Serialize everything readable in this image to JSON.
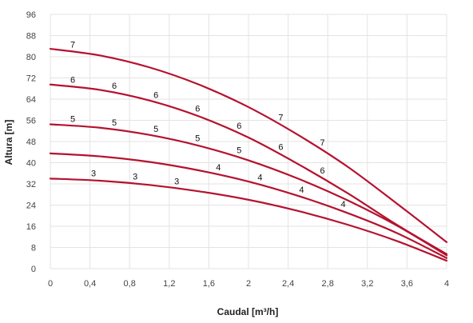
{
  "chart_data": {
    "type": "line",
    "xlabel": "Caudal [m³/h]",
    "ylabel": "Altura [m]",
    "xlim": [
      0,
      4
    ],
    "ylim": [
      0,
      96
    ],
    "x_ticks": [
      {
        "value": 0,
        "label": "0"
      },
      {
        "value": 0.4,
        "label": "0,4"
      },
      {
        "value": 0.8,
        "label": "0,8"
      },
      {
        "value": 1.2,
        "label": "1,2"
      },
      {
        "value": 1.6,
        "label": "1,6"
      },
      {
        "value": 2.0,
        "label": "2"
      },
      {
        "value": 2.4,
        "label": "2,4"
      },
      {
        "value": 2.8,
        "label": "2,8"
      },
      {
        "value": 3.2,
        "label": "3,2"
      },
      {
        "value": 3.6,
        "label": "3,6"
      },
      {
        "value": 4.0,
        "label": "4"
      }
    ],
    "y_ticks": [
      {
        "value": 0,
        "label": "0"
      },
      {
        "value": 8,
        "label": "8"
      },
      {
        "value": 16,
        "label": "16"
      },
      {
        "value": 24,
        "label": "24"
      },
      {
        "value": 32,
        "label": "32"
      },
      {
        "value": 40,
        "label": "40"
      },
      {
        "value": 48,
        "label": "48"
      },
      {
        "value": 56,
        "label": "56"
      },
      {
        "value": 64,
        "label": "64"
      },
      {
        "value": 72,
        "label": "72"
      },
      {
        "value": 80,
        "label": "80"
      },
      {
        "value": 88,
        "label": "88"
      },
      {
        "value": 96,
        "label": "96"
      }
    ],
    "grid": true,
    "line_color": "#b5122f",
    "series": [
      {
        "name": "3",
        "x": [
          0,
          0.5,
          1.0,
          1.5,
          2.0,
          2.5,
          3.0,
          3.5,
          4.0
        ],
        "y": [
          34,
          33.2,
          31.6,
          29.2,
          26.0,
          21.8,
          16.6,
          10.4,
          3.0
        ],
        "labels": [
          {
            "x": 0.42,
            "text": "3"
          },
          {
            "x": 0.84,
            "text": "3"
          },
          {
            "x": 1.26,
            "text": "3"
          }
        ]
      },
      {
        "name": "4",
        "x": [
          0,
          0.5,
          1.0,
          1.5,
          2.0,
          2.5,
          3.0,
          3.5,
          4.0
        ],
        "y": [
          43.5,
          42.4,
          40.3,
          37.1,
          32.9,
          27.5,
          21.0,
          13.4,
          4.0
        ],
        "labels": [
          {
            "x": 1.68,
            "text": "4"
          },
          {
            "x": 2.1,
            "text": "4"
          },
          {
            "x": 2.52,
            "text": "4"
          },
          {
            "x": 2.94,
            "text": "4"
          }
        ]
      },
      {
        "name": "5",
        "x": [
          0,
          0.5,
          1.0,
          1.5,
          2.0,
          2.5,
          3.0,
          3.5,
          4.0
        ],
        "y": [
          54.5,
          53.2,
          50.5,
          46.4,
          40.9,
          34.0,
          25.8,
          16.2,
          5.0
        ],
        "labels": [
          {
            "x": 0.21,
            "text": "5"
          },
          {
            "x": 0.63,
            "text": "5"
          },
          {
            "x": 1.05,
            "text": "5"
          },
          {
            "x": 1.47,
            "text": "5"
          },
          {
            "x": 1.89,
            "text": "5"
          }
        ]
      },
      {
        "name": "6",
        "x": [
          0,
          0.5,
          1.0,
          1.5,
          2.0,
          2.5,
          3.0,
          3.5,
          4.0
        ],
        "y": [
          69.5,
          67.5,
          63.5,
          57.5,
          49.5,
          39.5,
          28.5,
          16.5,
          5.5
        ],
        "labels": [
          {
            "x": 0.21,
            "text": "6"
          },
          {
            "x": 0.63,
            "text": "6"
          },
          {
            "x": 1.05,
            "text": "6"
          },
          {
            "x": 1.47,
            "text": "6"
          },
          {
            "x": 1.89,
            "text": "6"
          },
          {
            "x": 2.31,
            "text": "6"
          },
          {
            "x": 2.73,
            "text": "6"
          }
        ]
      },
      {
        "name": "7",
        "x": [
          0,
          0.5,
          1.0,
          1.5,
          2.0,
          2.5,
          3.0,
          3.5,
          4.0
        ],
        "y": [
          83,
          80.5,
          76.0,
          69.5,
          61.0,
          50.5,
          38.5,
          24.5,
          10.0
        ],
        "labels": [
          {
            "x": 0.21,
            "text": "7"
          },
          {
            "x": 2.31,
            "text": "7"
          },
          {
            "x": 2.73,
            "text": "7"
          }
        ]
      }
    ]
  }
}
